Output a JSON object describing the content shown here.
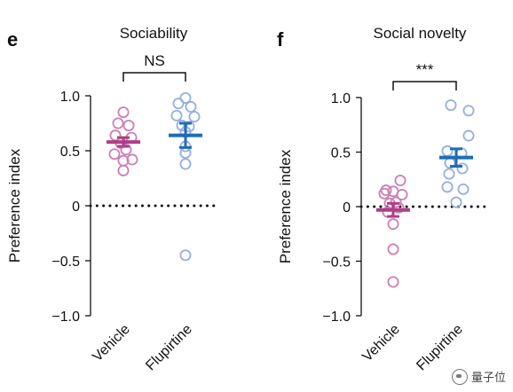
{
  "chart_data": [
    {
      "panel": "e",
      "type": "scatter",
      "title": "Sociability",
      "ylabel": "Preference index",
      "ylim": [
        -1.0,
        1.0
      ],
      "yticks": [
        1.0,
        0.5,
        0,
        -0.5,
        -1.0
      ],
      "ytick_labels": [
        "1.0",
        "0.5",
        "0",
        "−0.5",
        "−1.0"
      ],
      "categories": [
        "Vehicle",
        "Flupirtine"
      ],
      "significance": "NS",
      "series": [
        {
          "name": "Vehicle",
          "color": "#cc7fb5",
          "points": [
            0.85,
            0.75,
            0.73,
            0.64,
            0.62,
            0.57,
            0.51,
            0.47,
            0.42,
            0.41,
            0.32
          ],
          "mean": 0.58,
          "sem": 0.04
        },
        {
          "name": "Flupirtine",
          "color": "#96afdd",
          "points": [
            0.98,
            0.93,
            0.9,
            0.82,
            0.81,
            0.73,
            0.72,
            0.67,
            0.54,
            0.48,
            0.38,
            -0.45
          ],
          "mean": 0.64,
          "sem": 0.11
        }
      ],
      "mean_colors": [
        "#b03e86",
        "#1f6db3"
      ],
      "zero_line": "dotted"
    },
    {
      "panel": "f",
      "type": "scatter",
      "title": "Social novelty",
      "ylabel": "Preference index",
      "ylim": [
        -1.0,
        1.0
      ],
      "yticks": [
        1.0,
        0.5,
        0,
        -0.5,
        -1.0
      ],
      "ytick_labels": [
        "1.0",
        "0.5",
        "0",
        "−0.5",
        "−1.0"
      ],
      "categories": [
        "Vehicle",
        "Flupirtine"
      ],
      "significance": "***",
      "series": [
        {
          "name": "Vehicle",
          "color": "#cc7fb5",
          "points": [
            0.24,
            0.15,
            0.14,
            0.12,
            0.11,
            0.04,
            0.03,
            -0.01,
            -0.05,
            -0.16,
            -0.39,
            -0.69
          ],
          "mean": -0.03,
          "sem": 0.06
        },
        {
          "name": "Flupirtine",
          "color": "#96afdd",
          "points": [
            0.93,
            0.88,
            0.65,
            0.51,
            0.49,
            0.4,
            0.35,
            0.3,
            0.18,
            0.16,
            0.04
          ],
          "mean": 0.45,
          "sem": 0.08
        }
      ],
      "mean_colors": [
        "#b03e86",
        "#1f6db3"
      ],
      "zero_line": "dotted"
    }
  ],
  "watermark": {
    "text": "量子位"
  }
}
